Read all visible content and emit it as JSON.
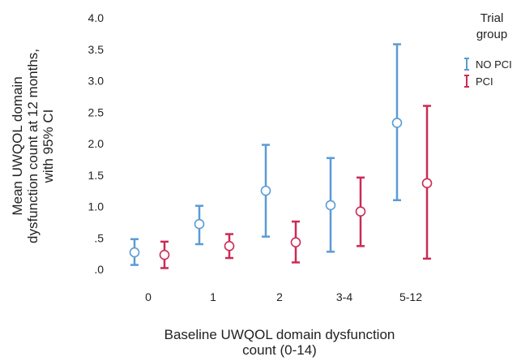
{
  "chart_data": {
    "type": "errorbar",
    "xlabel_lines": [
      "Baseline UWQOL domain dysfunction",
      "count (0-14)"
    ],
    "ylabel_lines": [
      "Mean  UWQOL domain",
      "dysfunction count at 12 months,",
      "with 95% CI"
    ],
    "categories": [
      "0",
      "1",
      "2",
      "3-4",
      "5-12"
    ],
    "ylim": [
      0,
      4.0
    ],
    "yticks": [
      0,
      0.5,
      1.0,
      1.5,
      2.0,
      2.5,
      3.0,
      3.5,
      4.0
    ],
    "ytick_labels": [
      ".0",
      ".5",
      "1.0",
      "1.5",
      "2.0",
      "2.5",
      "3.0",
      "3.5",
      "4.0"
    ],
    "grid": false,
    "legend": {
      "title_lines": [
        "Trial",
        "group"
      ],
      "placement": "right"
    },
    "series": [
      {
        "name": "NO PCI",
        "color": "#5b9bd5",
        "mean": [
          0.27,
          0.72,
          1.25,
          1.02,
          2.33
        ],
        "lower": [
          0.07,
          0.4,
          0.52,
          0.28,
          1.1
        ],
        "upper": [
          0.48,
          1.01,
          1.98,
          1.77,
          3.58
        ]
      },
      {
        "name": "PCI",
        "color": "#cc2a55",
        "mean": [
          0.23,
          0.37,
          0.43,
          0.92,
          1.37
        ],
        "lower": [
          0.02,
          0.18,
          0.11,
          0.37,
          0.17
        ],
        "upper": [
          0.44,
          0.56,
          0.76,
          1.46,
          2.6
        ]
      }
    ]
  }
}
